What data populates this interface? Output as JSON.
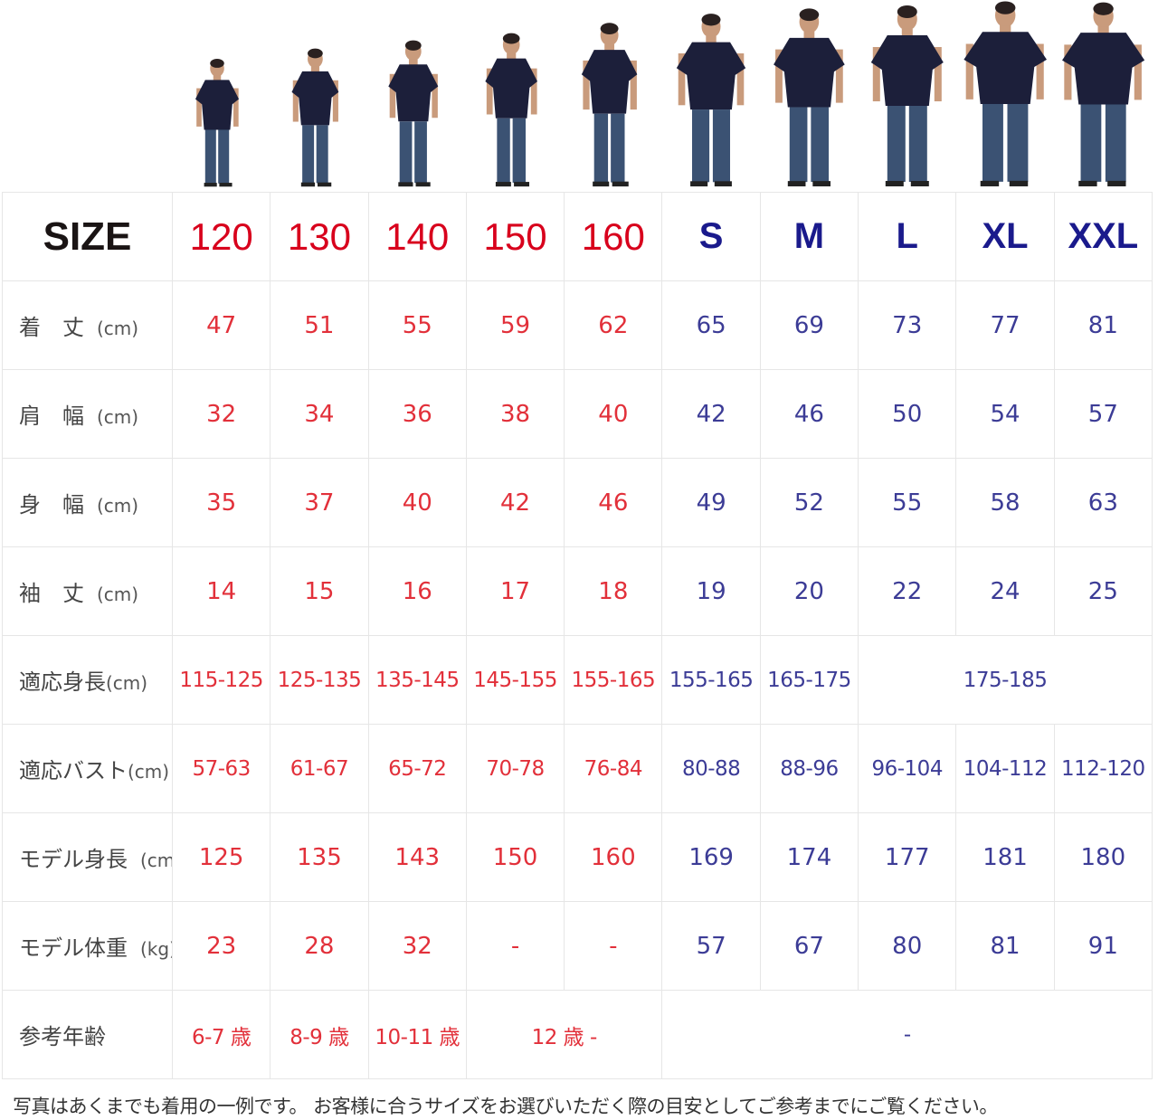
{
  "colors": {
    "kids_header": "#d8001c",
    "adult_header": "#1a1a8c",
    "kids_value": "#e2303a",
    "adult_value": "#3c3c96",
    "shirt": "#1c1f3a",
    "jeans": "#3b5273"
  },
  "header": {
    "label": "SIZE",
    "sizes": [
      {
        "label": "120",
        "group": "kids"
      },
      {
        "label": "130",
        "group": "kids"
      },
      {
        "label": "140",
        "group": "kids"
      },
      {
        "label": "150",
        "group": "kids"
      },
      {
        "label": "160",
        "group": "kids"
      },
      {
        "label": "S",
        "group": "adult"
      },
      {
        "label": "M",
        "group": "adult"
      },
      {
        "label": "L",
        "group": "adult"
      },
      {
        "label": "XL",
        "group": "adult"
      },
      {
        "label": "XXL",
        "group": "adult"
      }
    ]
  },
  "rows": [
    {
      "label": "着　丈",
      "unit": "(cm)",
      "cells": [
        {
          "v": "47"
        },
        {
          "v": "51"
        },
        {
          "v": "55"
        },
        {
          "v": "59"
        },
        {
          "v": "62"
        },
        {
          "v": "65"
        },
        {
          "v": "69"
        },
        {
          "v": "73"
        },
        {
          "v": "77"
        },
        {
          "v": "81"
        }
      ]
    },
    {
      "label": "肩　幅",
      "unit": "(cm)",
      "cells": [
        {
          "v": "32"
        },
        {
          "v": "34"
        },
        {
          "v": "36"
        },
        {
          "v": "38"
        },
        {
          "v": "40"
        },
        {
          "v": "42"
        },
        {
          "v": "46"
        },
        {
          "v": "50"
        },
        {
          "v": "54"
        },
        {
          "v": "57"
        }
      ]
    },
    {
      "label": "身　幅",
      "unit": "(cm)",
      "cells": [
        {
          "v": "35"
        },
        {
          "v": "37"
        },
        {
          "v": "40"
        },
        {
          "v": "42"
        },
        {
          "v": "46"
        },
        {
          "v": "49"
        },
        {
          "v": "52"
        },
        {
          "v": "55"
        },
        {
          "v": "58"
        },
        {
          "v": "63"
        }
      ]
    },
    {
      "label": "袖　丈",
      "unit": "(cm)",
      "cells": [
        {
          "v": "14"
        },
        {
          "v": "15"
        },
        {
          "v": "16"
        },
        {
          "v": "17"
        },
        {
          "v": "18"
        },
        {
          "v": "19"
        },
        {
          "v": "20"
        },
        {
          "v": "22"
        },
        {
          "v": "24"
        },
        {
          "v": "25"
        }
      ]
    },
    {
      "label": "適応身長",
      "unit": "(cm)",
      "range": true,
      "cells": [
        {
          "v": "115-125"
        },
        {
          "v": "125-135"
        },
        {
          "v": "135-145"
        },
        {
          "v": "145-155"
        },
        {
          "v": "155-165"
        },
        {
          "v": "155-165"
        },
        {
          "v": "165-175"
        },
        {
          "v": "175-185",
          "span": 3
        }
      ]
    },
    {
      "label": "適応バスト",
      "unit": "(cm)",
      "range": true,
      "cells": [
        {
          "v": "57-63"
        },
        {
          "v": "61-67"
        },
        {
          "v": "65-72"
        },
        {
          "v": "70-78"
        },
        {
          "v": "76-84"
        },
        {
          "v": "80-88"
        },
        {
          "v": "88-96"
        },
        {
          "v": "96-104"
        },
        {
          "v": "104-112"
        },
        {
          "v": "112-120"
        }
      ]
    },
    {
      "label": "モデル身長",
      "unit": "(cm)",
      "cells": [
        {
          "v": "125"
        },
        {
          "v": "135"
        },
        {
          "v": "143"
        },
        {
          "v": "150"
        },
        {
          "v": "160"
        },
        {
          "v": "169"
        },
        {
          "v": "174"
        },
        {
          "v": "177"
        },
        {
          "v": "181"
        },
        {
          "v": "180"
        }
      ]
    },
    {
      "label": "モデル体重",
      "unit": "(kg)",
      "cells": [
        {
          "v": "23"
        },
        {
          "v": "28"
        },
        {
          "v": "32"
        },
        {
          "v": "-"
        },
        {
          "v": "-"
        },
        {
          "v": "57"
        },
        {
          "v": "67"
        },
        {
          "v": "80"
        },
        {
          "v": "81"
        },
        {
          "v": "91"
        }
      ]
    },
    {
      "label": "参考年齢",
      "unit": "",
      "range": true,
      "cells": [
        {
          "v": "6-7 歳"
        },
        {
          "v": "8-9 歳"
        },
        {
          "v": "10-11 歳"
        },
        {
          "v": "12 歳 -",
          "span": 2
        },
        {
          "v": "-",
          "span": 5
        }
      ]
    }
  ],
  "note": "写真はあくまでも着用の一例です。 お客様に合うサイズをお選びいただく際の目安としてご参考までにご覧ください。"
}
